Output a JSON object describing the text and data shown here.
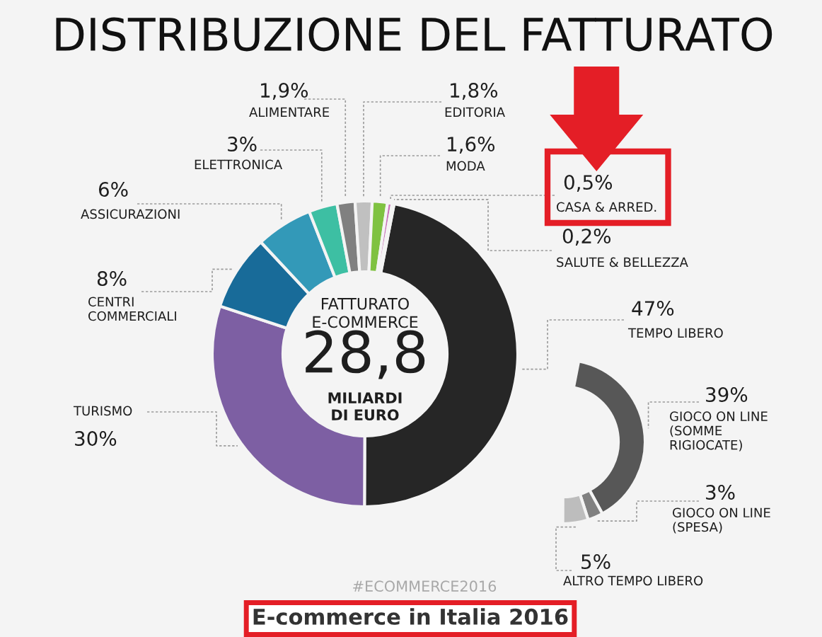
{
  "chart_data": [
    {
      "type": "donut",
      "title": "DISTRIBUZIONE DEL FATTURATO",
      "categories": [
        "TEMPO LIBERO",
        "TURISMO",
        "CENTRI\nCOMMERCIALI",
        "ASSICURAZIONI",
        "ELETTRONICA",
        "ALIMENTARE",
        "EDITORIA",
        "MODA",
        "CASA & ARRED.",
        "SALUTE & BELLEZZA"
      ],
      "values": [
        47,
        30,
        8,
        6,
        3,
        1.9,
        1.8,
        1.6,
        0.5,
        0.2
      ],
      "value_labels": [
        "47%",
        "30%",
        "8%",
        "6%",
        "3%",
        "1,9%",
        "1,8%",
        "1,6%",
        "0,5%",
        "0,2%"
      ],
      "colors": [
        "#262626",
        "#7d5fa3",
        "#186b99",
        "#3399b8",
        "#3dbfa3",
        "#808080",
        "#c0c0c0",
        "#7fc241",
        "#c874b8",
        "#e3b0d6"
      ],
      "annotations": [
        "FATTURATO\nE-COMMERCE",
        "28,8",
        "MILIARDI\nDI EURO",
        "#ECOMMERCE2016",
        "E-commerce in Italia 2016"
      ]
    },
    {
      "type": "donut",
      "categories": [
        "GIOCO ON LINE\n(SOMME\nRIGIOCATE)",
        "GIOCO ON LINE\n(SPESA)",
        "ALTRO TEMPO LIBERO"
      ],
      "values": [
        39,
        3,
        5
      ],
      "value_labels": [
        "39%",
        "3%",
        "5%"
      ],
      "colors": [
        "#575757",
        "#808080",
        "#bdbdbd"
      ]
    }
  ]
}
